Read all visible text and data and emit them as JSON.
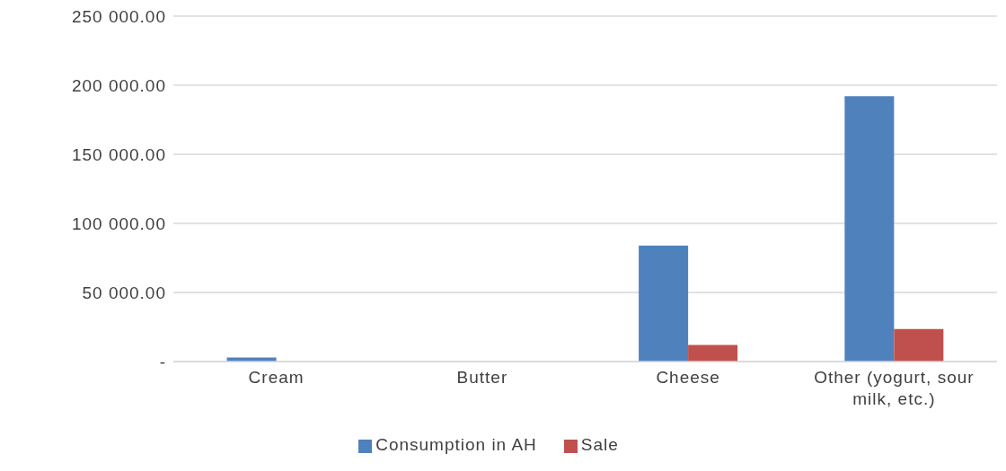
{
  "chart_data": {
    "type": "bar",
    "categories": [
      "Cream",
      "Butter",
      "Cheese",
      "Other (yogurt, sour milk, etc.)"
    ],
    "series": [
      {
        "name": "Consumption in AH",
        "color": "#4f81bd",
        "values": [
          3000,
          null,
          84000,
          192000
        ]
      },
      {
        "name": "Sale",
        "color": "#c0504d",
        "values": [
          null,
          null,
          12000,
          23600
        ]
      }
    ],
    "ylim": [
      0,
      250000
    ],
    "yticks": [
      {
        "value": 0,
        "label": "-"
      },
      {
        "value": 50000,
        "label": "50 000.00"
      },
      {
        "value": 100000,
        "label": "100 000.00"
      },
      {
        "value": 150000,
        "label": "150 000.00"
      },
      {
        "value": 200000,
        "label": "200 000.00"
      },
      {
        "value": 250000,
        "label": "250 000.00"
      }
    ],
    "grid": "y",
    "legend": "bottom"
  }
}
